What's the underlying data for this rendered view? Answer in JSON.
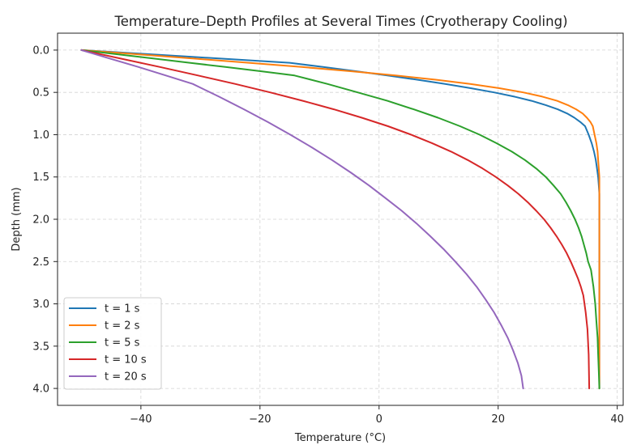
{
  "chart_data": {
    "type": "line",
    "title": "Temperature–Depth Profiles at Several Times (Cryotherapy Cooling)",
    "xlabel": "Temperature (°C)",
    "ylabel": "Depth (mm)",
    "xlim": [
      -54,
      41
    ],
    "ylim": [
      4.2,
      -0.2
    ],
    "xticks": [
      -40,
      -20,
      0,
      20,
      40
    ],
    "xtick_labels": [
      "−40",
      "−20",
      "0",
      "20",
      "40"
    ],
    "yticks": [
      0.0,
      0.5,
      1.0,
      1.5,
      2.0,
      2.5,
      3.0,
      3.5,
      4.0
    ],
    "ytick_labels": [
      "0.0",
      "0.5",
      "1.0",
      "1.5",
      "2.0",
      "2.5",
      "3.0",
      "3.5",
      "4.0"
    ],
    "y_inverted": true,
    "grid": true,
    "legend_position": "bottom-left",
    "colors": {
      "t1": "#1f77b4",
      "t2": "#ff7f0e",
      "t5": "#2ca02c",
      "t10": "#d62728",
      "t20": "#9467bd",
      "grid": "#d0d0d0",
      "axis": "#222222"
    },
    "series": [
      {
        "name": "t = 1 s",
        "color": "#1f77b4",
        "x": [
          -50,
          -44.2,
          -38.3,
          -32.5,
          -26.6,
          -20.8,
          -15.0,
          -9.4,
          -3.9,
          1.4,
          6.4,
          11.1,
          15.4,
          19.3,
          22.7,
          25.6,
          28.0,
          30.0,
          31.6,
          32.8,
          33.8,
          34.6,
          35.2,
          35.7,
          36.1,
          36.4,
          36.6,
          36.8,
          36.9,
          37.0,
          37.0,
          37.0,
          37.0
        ],
        "y": [
          0.0,
          0.025,
          0.05,
          0.075,
          0.1,
          0.125,
          0.15,
          0.2,
          0.25,
          0.3,
          0.35,
          0.4,
          0.45,
          0.5,
          0.55,
          0.6,
          0.65,
          0.7,
          0.75,
          0.8,
          0.85,
          0.9,
          1.0,
          1.1,
          1.2,
          1.3,
          1.4,
          1.5,
          1.6,
          1.7,
          1.8,
          2.0,
          4.0
        ]
      },
      {
        "name": "t = 2 s",
        "color": "#ff7f0e",
        "x": [
          -50,
          -40.5,
          -31.1,
          -21.9,
          -13.0,
          -4.8,
          2.8,
          9.5,
          15.3,
          20.2,
          24.2,
          27.4,
          29.9,
          31.7,
          33.1,
          34.2,
          34.9,
          35.5,
          35.9,
          36.2,
          36.5,
          36.7,
          36.8,
          36.9,
          37.0,
          37.0,
          37.0,
          37.0
        ],
        "y": [
          0.0,
          0.05,
          0.1,
          0.15,
          0.2,
          0.25,
          0.3,
          0.35,
          0.4,
          0.45,
          0.5,
          0.55,
          0.6,
          0.65,
          0.7,
          0.75,
          0.8,
          0.85,
          0.9,
          1.0,
          1.1,
          1.2,
          1.3,
          1.4,
          1.5,
          1.7,
          2.2,
          4.0
        ]
      },
      {
        "name": "t = 5 s",
        "color": "#2ca02c",
        "x": [
          -50,
          -43.9,
          -37.8,
          -31.8,
          -25.8,
          -19.9,
          -14.2,
          -8.7,
          -3.6,
          1.4,
          5.8,
          9.9,
          13.6,
          16.9,
          19.7,
          22.3,
          24.5,
          26.4,
          28.0,
          29.3,
          30.5,
          31.4,
          32.2,
          32.9,
          33.5,
          34.0,
          34.4,
          34.8,
          35.1,
          35.6,
          36.0,
          36.3,
          36.5,
          36.7,
          36.8,
          36.9,
          37.0
        ],
        "y": [
          0.0,
          0.05,
          0.1,
          0.15,
          0.2,
          0.25,
          0.3,
          0.4,
          0.5,
          0.6,
          0.7,
          0.8,
          0.9,
          1.0,
          1.1,
          1.2,
          1.3,
          1.4,
          1.5,
          1.6,
          1.7,
          1.8,
          1.9,
          2.0,
          2.1,
          2.2,
          2.3,
          2.4,
          2.5,
          2.6,
          2.8,
          3.0,
          3.2,
          3.4,
          3.6,
          3.8,
          4.0
        ]
      },
      {
        "name": "t = 10 s",
        "color": "#d62728",
        "x": [
          -50,
          -43.4,
          -36.8,
          -30.4,
          -24.2,
          -18.3,
          -12.8,
          -7.6,
          -2.9,
          1.5,
          5.4,
          8.9,
          12.1,
          14.9,
          17.4,
          19.6,
          21.6,
          23.4,
          25.0,
          26.4,
          27.7,
          28.8,
          29.8,
          30.7,
          31.5,
          32.2,
          32.8,
          33.4,
          33.9,
          34.3,
          34.7,
          35.0,
          35.2,
          35.3
        ],
        "y": [
          0.0,
          0.1,
          0.2,
          0.3,
          0.4,
          0.5,
          0.6,
          0.7,
          0.8,
          0.9,
          1.0,
          1.1,
          1.2,
          1.3,
          1.4,
          1.5,
          1.6,
          1.7,
          1.8,
          1.9,
          2.0,
          2.1,
          2.2,
          2.3,
          2.4,
          2.5,
          2.6,
          2.7,
          2.8,
          2.9,
          3.1,
          3.3,
          3.6,
          4.0
        ]
      },
      {
        "name": "t = 20 s",
        "color": "#9467bd",
        "x": [
          -50,
          -45.2,
          -40.4,
          -35.8,
          -31.3,
          -26.9,
          -22.7,
          -18.7,
          -14.9,
          -11.3,
          -7.9,
          -4.7,
          -1.7,
          1.1,
          3.8,
          6.3,
          8.6,
          10.8,
          12.8,
          14.7,
          16.4,
          17.9,
          19.3,
          20.5,
          21.6,
          22.5,
          23.3,
          23.9,
          24.2
        ],
        "y": [
          0.0,
          0.1,
          0.2,
          0.3,
          0.4,
          0.55,
          0.7,
          0.85,
          1.0,
          1.15,
          1.3,
          1.45,
          1.6,
          1.75,
          1.9,
          2.05,
          2.2,
          2.35,
          2.5,
          2.65,
          2.8,
          2.95,
          3.1,
          3.25,
          3.4,
          3.55,
          3.7,
          3.85,
          4.0
        ]
      }
    ]
  }
}
